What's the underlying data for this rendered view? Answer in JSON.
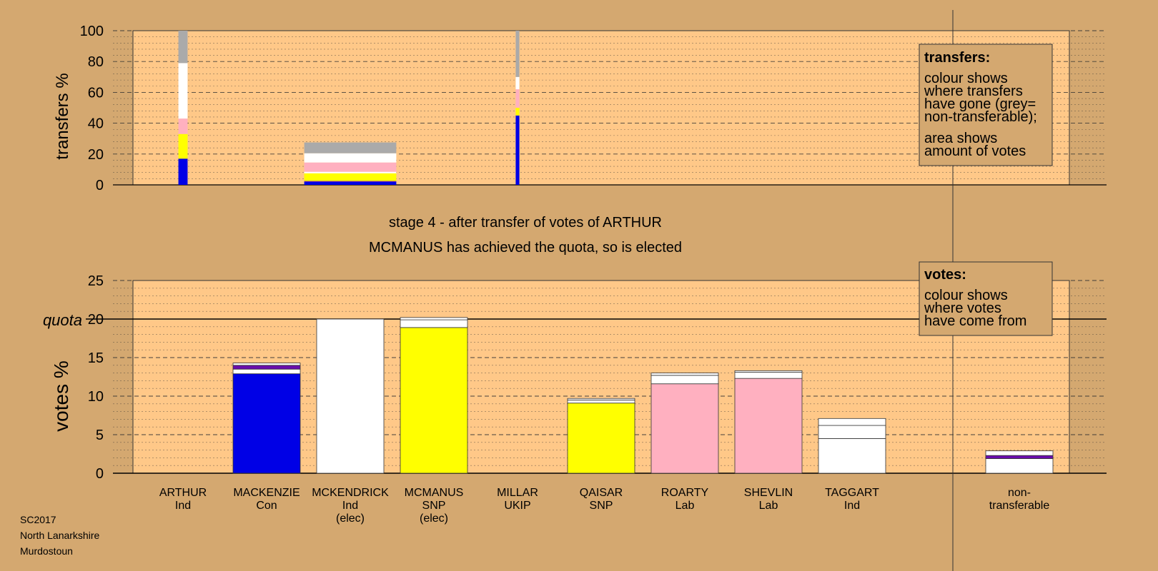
{
  "colors": {
    "page_bg": "#D4A870",
    "plot_bg": "#FFC888",
    "con": "#0000E6",
    "snp": "#FFFF00",
    "lab": "#FFB0C0",
    "ind": "#FFFFFF",
    "non_transferable": "#AAAAAA",
    "accent": "#6A0DAD"
  },
  "chart_data": {
    "type": "bar",
    "stage_title": "stage 4 - after transfer of votes of ARTHUR",
    "stage_subtitle": "MCMANUS has achieved the quota, so is elected",
    "footer": [
      "SC2017",
      "North Lanarkshire",
      "Murdostoun"
    ],
    "candidates": [
      {
        "name": "ARTHUR",
        "party": "Ind",
        "status": ""
      },
      {
        "name": "MACKENZIE",
        "party": "Con",
        "status": ""
      },
      {
        "name": "MCKENDRICK",
        "party": "Ind",
        "status": "(elec)"
      },
      {
        "name": "MCMANUS",
        "party": "SNP",
        "status": "(elec)"
      },
      {
        "name": "MILLAR",
        "party": "UKIP",
        "status": ""
      },
      {
        "name": "QAISAR",
        "party": "SNP",
        "status": ""
      },
      {
        "name": "ROARTY",
        "party": "Lab",
        "status": ""
      },
      {
        "name": "SHEVLIN",
        "party": "Lab",
        "status": ""
      },
      {
        "name": "TAGGART",
        "party": "Ind",
        "status": ""
      }
    ],
    "nontransferable_label": [
      "non-",
      "transferable"
    ],
    "transfers_panel": {
      "ylabel": "transfers %",
      "ylim": [
        0,
        100
      ],
      "yticks": [
        0,
        20,
        40,
        60,
        80,
        100
      ],
      "legend_title": "transfers:",
      "legend_lines": [
        [
          "colour shows",
          "where transfers",
          "have gone (grey=",
          "non-transferable);"
        ],
        [
          "area shows",
          "amount of votes"
        ]
      ],
      "bars": [
        {
          "candidate": "ARTHUR",
          "width_share": 0.1,
          "segments": [
            {
              "color": "con",
              "value": 17
            },
            {
              "color": "snp",
              "value": 16
            },
            {
              "color": "lab",
              "value": 10
            },
            {
              "color": "ind",
              "value": 36
            },
            {
              "color": "non_transferable",
              "value": 21
            }
          ]
        },
        {
          "candidate": "MCKENDRICK",
          "width_share": 1.0,
          "segments": [
            {
              "color": "con",
              "value": 2
            },
            {
              "color": "accent",
              "value": 0.5
            },
            {
              "color": "snp",
              "value": 5
            },
            {
              "color": "ind",
              "value": 1
            },
            {
              "color": "lab",
              "value": 6
            },
            {
              "color": "ind",
              "value": 6
            },
            {
              "color": "non_transferable",
              "value": 7
            }
          ]
        },
        {
          "candidate": "MILLAR",
          "width_share": 0.04,
          "segments": [
            {
              "color": "con",
              "value": 45
            },
            {
              "color": "snp",
              "value": 5
            },
            {
              "color": "lab",
              "value": 12
            },
            {
              "color": "ind",
              "value": 8
            },
            {
              "color": "non_transferable",
              "value": 30
            }
          ]
        }
      ]
    },
    "votes_panel": {
      "ylabel": "votes %",
      "ylim": [
        0,
        25
      ],
      "yticks": [
        0,
        5,
        10,
        15,
        20,
        25
      ],
      "quota": 20,
      "quota_label": "quota",
      "legend_title": "votes:",
      "legend_lines": [
        [
          "colour shows",
          "where votes",
          "have come from"
        ]
      ],
      "bars": [
        {
          "candidate": "ARTHUR",
          "segments": []
        },
        {
          "candidate": "MACKENZIE",
          "segments": [
            {
              "color": "con",
              "value": 12.9
            },
            {
              "color": "ind",
              "value": 0.6
            },
            {
              "color": "accent",
              "value": 0.5
            },
            {
              "color": "ind",
              "value": 0.3
            }
          ]
        },
        {
          "candidate": "MCKENDRICK",
          "segments": [
            {
              "color": "ind",
              "value": 20.0
            }
          ]
        },
        {
          "candidate": "MCMANUS",
          "segments": [
            {
              "color": "snp",
              "value": 18.9
            },
            {
              "color": "ind",
              "value": 1.0
            },
            {
              "color": "ind",
              "value": 0.3
            }
          ]
        },
        {
          "candidate": "MILLAR",
          "segments": []
        },
        {
          "candidate": "QAISAR",
          "segments": [
            {
              "color": "snp",
              "value": 9.1
            },
            {
              "color": "ind",
              "value": 0.4
            },
            {
              "color": "ind",
              "value": 0.2
            }
          ]
        },
        {
          "candidate": "ROARTY",
          "segments": [
            {
              "color": "lab",
              "value": 11.6
            },
            {
              "color": "ind",
              "value": 1.1
            },
            {
              "color": "ind",
              "value": 0.3
            }
          ]
        },
        {
          "candidate": "SHEVLIN",
          "segments": [
            {
              "color": "lab",
              "value": 12.3
            },
            {
              "color": "ind",
              "value": 0.8
            },
            {
              "color": "ind",
              "value": 0.2
            }
          ]
        },
        {
          "candidate": "TAGGART",
          "segments": [
            {
              "color": "ind",
              "value": 4.5
            },
            {
              "color": "ind",
              "value": 1.7
            },
            {
              "color": "ind",
              "value": 0.9
            }
          ]
        },
        {
          "candidate": "non-transferable",
          "segments": [
            {
              "color": "ind",
              "value": 1.9
            },
            {
              "color": "accent",
              "value": 0.4
            },
            {
              "color": "ind",
              "value": 0.6
            }
          ]
        }
      ]
    }
  }
}
